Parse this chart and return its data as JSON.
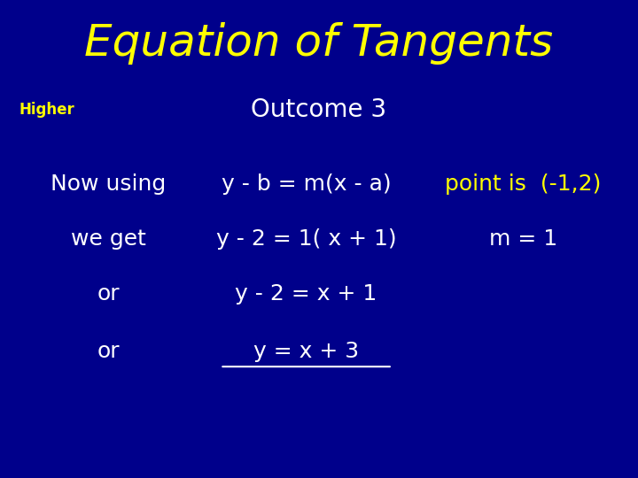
{
  "title": "Equation of Tangents",
  "title_color": "#FFFF00",
  "title_fontsize": 36,
  "background_color": "#00008B",
  "higher_text": "Higher",
  "higher_color": "#FFFF00",
  "higher_fontsize": 12,
  "outcome_text": "Outcome 3",
  "outcome_color": "#FFFFFF",
  "outcome_fontsize": 20,
  "white_color": "#FFFFFF",
  "yellow_color": "#FFFF00",
  "body_fontsize": 18,
  "rows": [
    {
      "col1": "Now using",
      "col2": "y - b = m(x - a)",
      "col3": "point is  (-1,2)",
      "col3_color": "#FFFF00",
      "underline_col2": false
    },
    {
      "col1": "we get",
      "col2": "y - 2 = 1( x + 1)",
      "col3": "m = 1",
      "col3_color": "#FFFFFF",
      "underline_col2": false
    },
    {
      "col1": "or",
      "col2": "y - 2 = x + 1",
      "col3": "",
      "col3_color": "#FFFFFF",
      "underline_col2": false
    },
    {
      "col1": "or",
      "col2": "y = x + 3",
      "col3": "",
      "col3_color": "#FFFFFF",
      "underline_col2": true
    }
  ]
}
